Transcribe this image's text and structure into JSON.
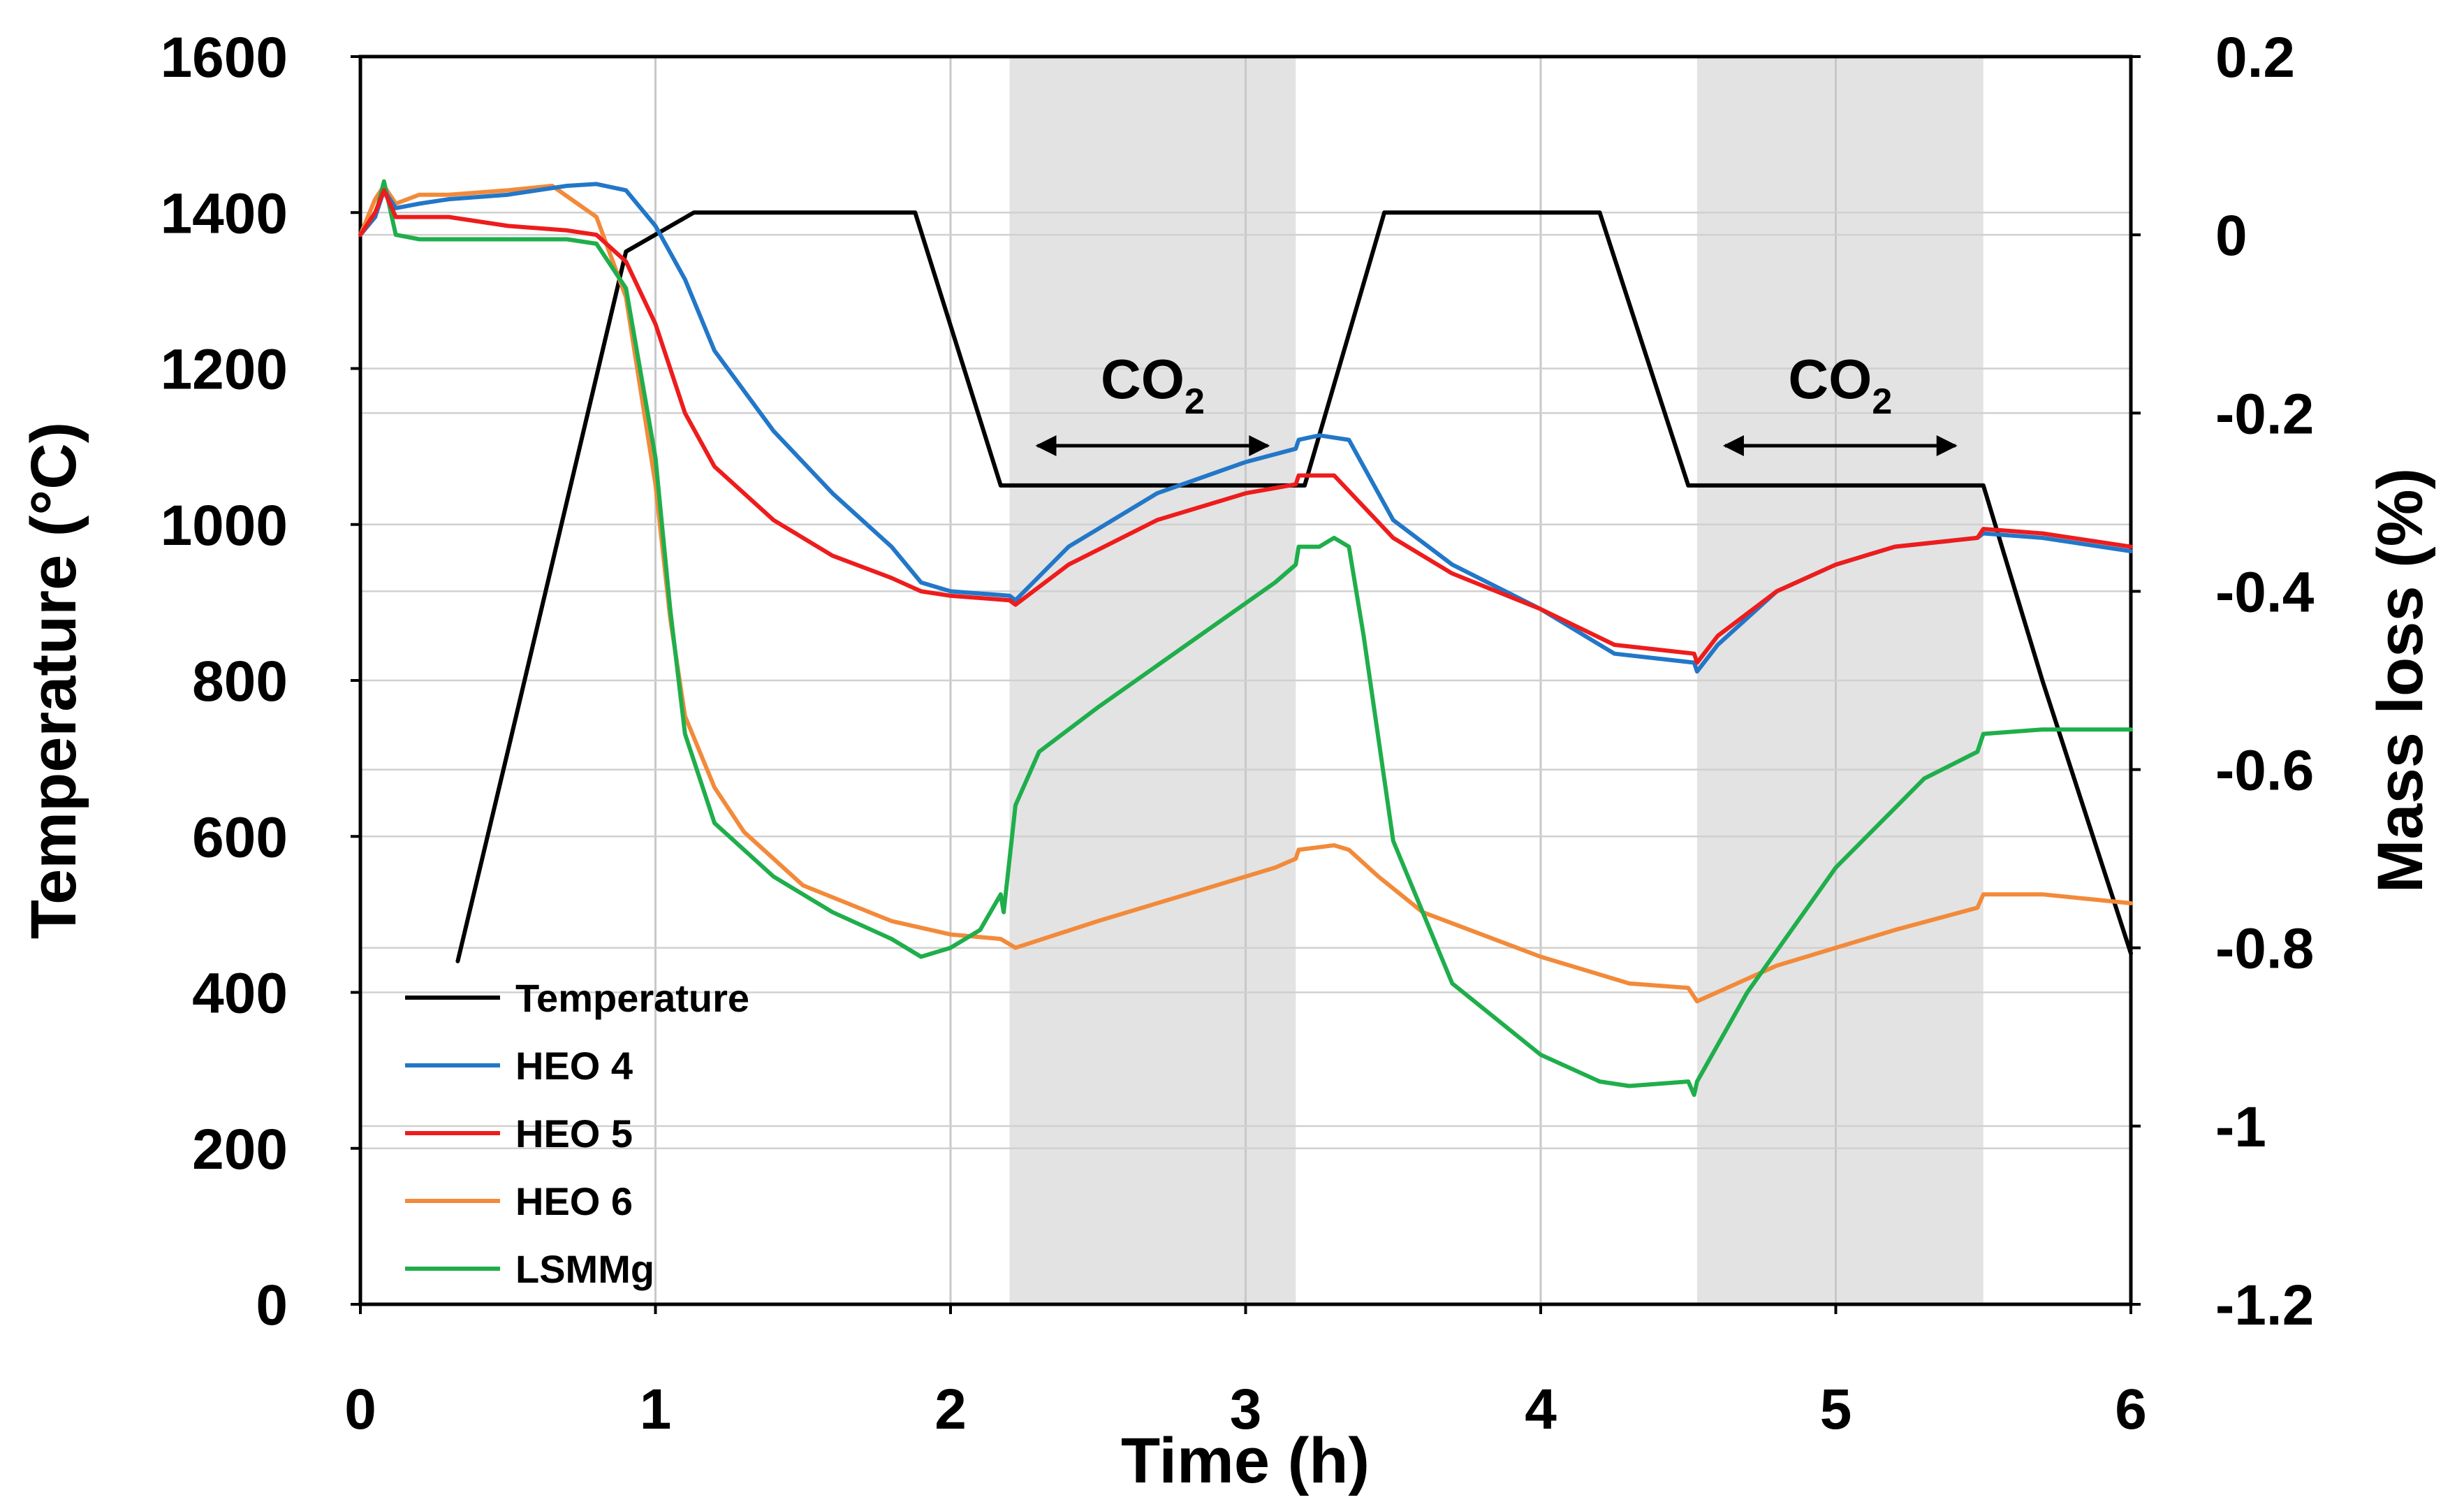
{
  "chart_data": {
    "type": "line",
    "xlabel": "Time (h)",
    "ylabel_left": "Temperature (°C)",
    "ylabel_right": "Mass loss (%)",
    "xlim": [
      0,
      6
    ],
    "ylim_left": [
      0,
      1600
    ],
    "ylim_right": [
      -1.2,
      0.2
    ],
    "x_ticks": [
      "0",
      "1",
      "2",
      "3",
      "4",
      "5",
      "6"
    ],
    "y_left_ticks": [
      "0",
      "200",
      "400",
      "600",
      "800",
      "1000",
      "1200",
      "1400",
      "1600"
    ],
    "y_right_ticks": [
      "-1.2",
      "-1",
      "-0.8",
      "-0.6",
      "-0.4",
      "-0.2",
      "0",
      "0.2"
    ],
    "grid": true,
    "legend_position": "bottom-left",
    "co2_regions": [
      {
        "label": "CO",
        "subscript": "2",
        "start": 2.2,
        "end": 3.17
      },
      {
        "label": "CO",
        "subscript": "2",
        "start": 4.53,
        "end": 5.5
      }
    ],
    "series": [
      {
        "name": "Temperature",
        "axis": "left",
        "color": "#000000",
        "x": [
          0.33,
          0.5,
          0.7,
          0.9,
          1.13,
          1.25,
          1.5,
          1.88,
          2.17,
          2.22,
          2.5,
          2.8,
          3.1,
          3.2,
          3.47,
          3.6,
          3.9,
          4.2,
          4.5,
          4.55,
          4.8,
          5.1,
          5.4,
          5.5,
          5.7,
          6.0
        ],
        "values": [
          440,
          710,
          1030,
          1350,
          1400,
          1400,
          1400,
          1400,
          1050,
          1050,
          1050,
          1050,
          1050,
          1050,
          1400,
          1400,
          1400,
          1400,
          1050,
          1050,
          1050,
          1050,
          1050,
          1050,
          800,
          450
        ]
      },
      {
        "name": "HEO 4",
        "axis": "right",
        "color": "#2277c8",
        "x": [
          0,
          0.05,
          0.08,
          0.12,
          0.2,
          0.3,
          0.5,
          0.7,
          0.8,
          0.9,
          1.0,
          1.1,
          1.2,
          1.4,
          1.6,
          1.8,
          1.9,
          2.0,
          2.2,
          2.22,
          2.4,
          2.7,
          3.0,
          3.17,
          3.18,
          3.25,
          3.35,
          3.5,
          3.7,
          4.0,
          4.25,
          4.52,
          4.53,
          4.6,
          4.8,
          5.0,
          5.2,
          5.48,
          5.5,
          5.7,
          6.0
        ],
        "values": [
          0.0,
          0.02,
          0.05,
          0.03,
          0.035,
          0.04,
          0.045,
          0.055,
          0.057,
          0.05,
          0.01,
          -0.05,
          -0.13,
          -0.22,
          -0.29,
          -0.35,
          -0.39,
          -0.4,
          -0.405,
          -0.41,
          -0.35,
          -0.29,
          -0.255,
          -0.24,
          -0.23,
          -0.225,
          -0.23,
          -0.32,
          -0.37,
          -0.42,
          -0.47,
          -0.48,
          -0.49,
          -0.46,
          -0.4,
          -0.37,
          -0.35,
          -0.34,
          -0.335,
          -0.34,
          -0.355
        ]
      },
      {
        "name": "HEO 5",
        "axis": "right",
        "color": "#ee1c1c",
        "x": [
          0,
          0.05,
          0.08,
          0.12,
          0.2,
          0.3,
          0.5,
          0.7,
          0.8,
          0.9,
          1.0,
          1.1,
          1.2,
          1.4,
          1.6,
          1.8,
          1.9,
          2.0,
          2.2,
          2.22,
          2.4,
          2.7,
          3.0,
          3.17,
          3.18,
          3.3,
          3.5,
          3.7,
          4.0,
          4.25,
          4.52,
          4.53,
          4.6,
          4.8,
          5.0,
          5.2,
          5.48,
          5.5,
          5.7,
          6.0
        ],
        "values": [
          0.0,
          0.025,
          0.05,
          0.02,
          0.02,
          0.02,
          0.01,
          0.005,
          0.0,
          -0.03,
          -0.1,
          -0.2,
          -0.26,
          -0.32,
          -0.36,
          -0.385,
          -0.4,
          -0.405,
          -0.41,
          -0.415,
          -0.37,
          -0.32,
          -0.29,
          -0.28,
          -0.27,
          -0.27,
          -0.34,
          -0.38,
          -0.42,
          -0.46,
          -0.47,
          -0.48,
          -0.45,
          -0.4,
          -0.37,
          -0.35,
          -0.34,
          -0.33,
          -0.335,
          -0.35
        ]
      },
      {
        "name": "HEO 6",
        "axis": "right",
        "color": "#f28a3a",
        "x": [
          0,
          0.05,
          0.08,
          0.12,
          0.2,
          0.3,
          0.5,
          0.65,
          0.8,
          0.9,
          1.0,
          1.05,
          1.1,
          1.2,
          1.3,
          1.5,
          1.8,
          2.0,
          2.17,
          2.22,
          2.5,
          2.8,
          3.1,
          3.17,
          3.18,
          3.3,
          3.35,
          3.45,
          3.6,
          4.0,
          4.3,
          4.5,
          4.53,
          4.8,
          5.2,
          5.48,
          5.5,
          5.7,
          6.0
        ],
        "values": [
          0.0,
          0.04,
          0.055,
          0.035,
          0.045,
          0.045,
          0.05,
          0.055,
          0.02,
          -0.07,
          -0.28,
          -0.43,
          -0.54,
          -0.62,
          -0.67,
          -0.73,
          -0.77,
          -0.785,
          -0.79,
          -0.8,
          -0.77,
          -0.74,
          -0.71,
          -0.7,
          -0.69,
          -0.685,
          -0.69,
          -0.72,
          -0.76,
          -0.81,
          -0.84,
          -0.845,
          -0.86,
          -0.82,
          -0.78,
          -0.755,
          -0.74,
          -0.74,
          -0.75
        ]
      },
      {
        "name": "LSMMg",
        "axis": "right",
        "color": "#1fae4b",
        "x": [
          0,
          0.05,
          0.08,
          0.12,
          0.2,
          0.3,
          0.5,
          0.7,
          0.8,
          0.9,
          1.0,
          1.05,
          1.1,
          1.2,
          1.4,
          1.6,
          1.8,
          1.9,
          2.0,
          2.1,
          2.17,
          2.18,
          2.22,
          2.3,
          2.5,
          2.8,
          3.1,
          3.17,
          3.18,
          3.25,
          3.3,
          3.35,
          3.4,
          3.5,
          3.7,
          4.0,
          4.2,
          4.3,
          4.5,
          4.52,
          4.53,
          4.7,
          5.0,
          5.3,
          5.48,
          5.5,
          5.7,
          6.0
        ],
        "values": [
          0.0,
          0.02,
          0.06,
          0.0,
          -0.005,
          -0.005,
          -0.005,
          -0.005,
          -0.01,
          -0.06,
          -0.25,
          -0.42,
          -0.56,
          -0.66,
          -0.72,
          -0.76,
          -0.79,
          -0.81,
          -0.8,
          -0.78,
          -0.74,
          -0.76,
          -0.64,
          -0.58,
          -0.53,
          -0.46,
          -0.39,
          -0.37,
          -0.35,
          -0.35,
          -0.34,
          -0.35,
          -0.45,
          -0.68,
          -0.84,
          -0.92,
          -0.95,
          -0.955,
          -0.95,
          -0.965,
          -0.95,
          -0.85,
          -0.71,
          -0.61,
          -0.58,
          -0.56,
          -0.555,
          -0.555
        ]
      }
    ]
  }
}
